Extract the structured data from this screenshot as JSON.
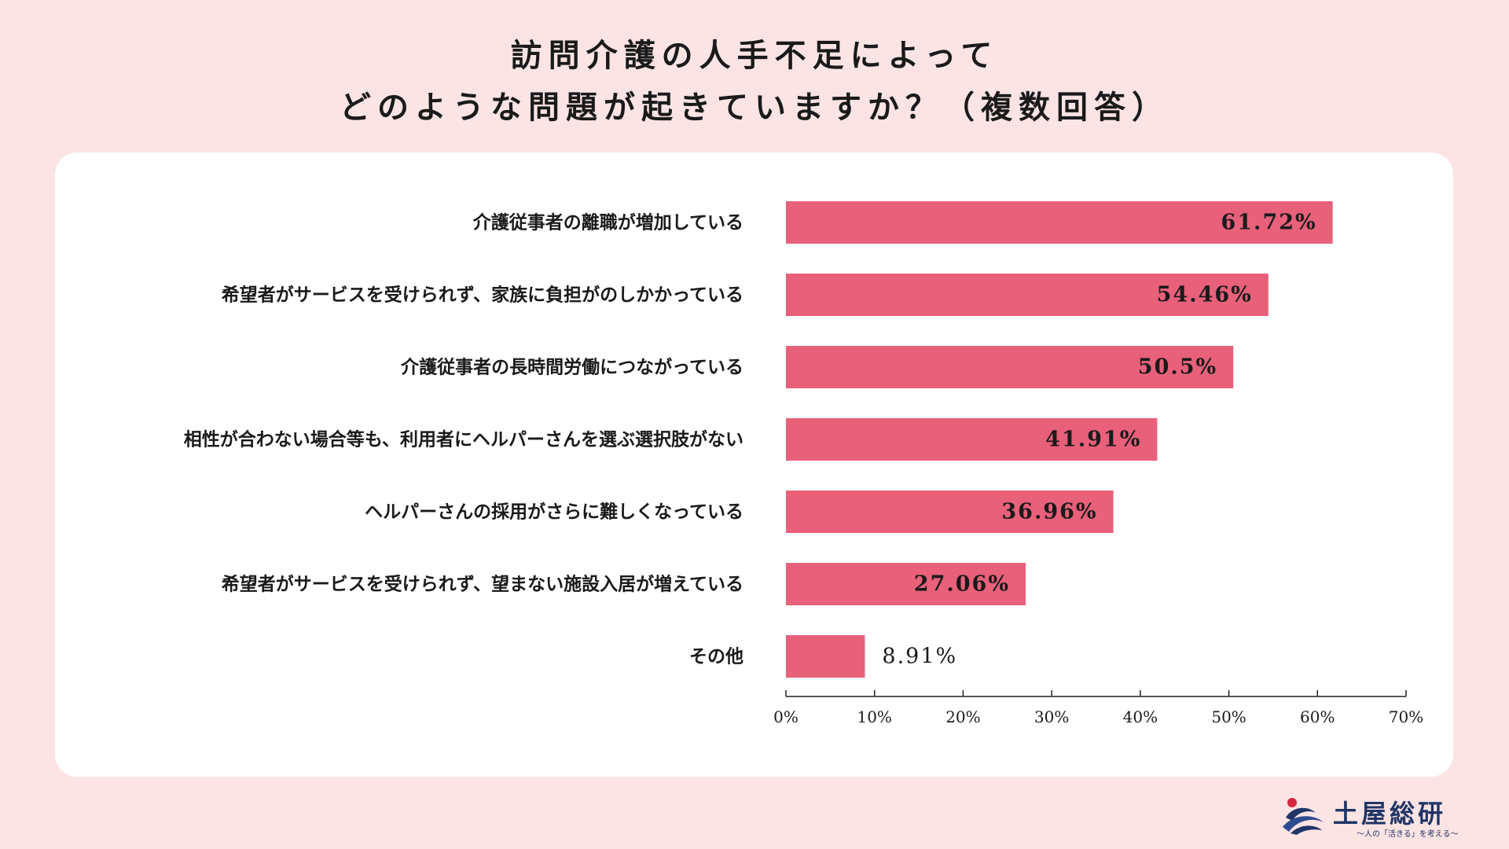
{
  "title": {
    "line1": "訪問介護の人手不足によって",
    "line2": "どのような問題が起きていますか？（複数回答）"
  },
  "colors": {
    "background": "#fde4e4",
    "card": "#ffffff",
    "bar": "#e8607a",
    "text": "#1a1a1a"
  },
  "chart_data": {
    "type": "bar",
    "orientation": "horizontal",
    "title": "訪問介護の人手不足によって どのような問題が起きていますか？（複数回答）",
    "categories": [
      "介護従事者の離職が増加している",
      "希望者がサービスを受けられず、家族に負担がのしかかっている",
      "介護従事者の長時間労働につながっている",
      "相性が合わない場合等も、利用者にヘルパーさんを選ぶ選択肢がない",
      "ヘルパーさんの採用がさらに難しくなっている",
      "希望者がサービスを受けられず、望まない施設入居が増えている",
      "その他"
    ],
    "values": [
      61.72,
      54.46,
      50.5,
      41.91,
      36.96,
      27.06,
      8.91
    ],
    "value_labels": [
      "61.72%",
      "54.46%",
      "50.5%",
      "41.91%",
      "36.96%",
      "27.06%",
      "8.91%"
    ],
    "xlim": [
      0,
      70
    ],
    "ticks": [
      0,
      10,
      20,
      30,
      40,
      50,
      60,
      70
    ],
    "tick_labels": [
      "0%",
      "10%",
      "20%",
      "30%",
      "40%",
      "50%",
      "60%",
      "70%"
    ],
    "grid": false,
    "legend": "none"
  },
  "logo": {
    "name": "土屋総研",
    "tagline": "〜人の「活きる」を考える〜",
    "icon": "tsuchiya-wave-logo-icon"
  }
}
